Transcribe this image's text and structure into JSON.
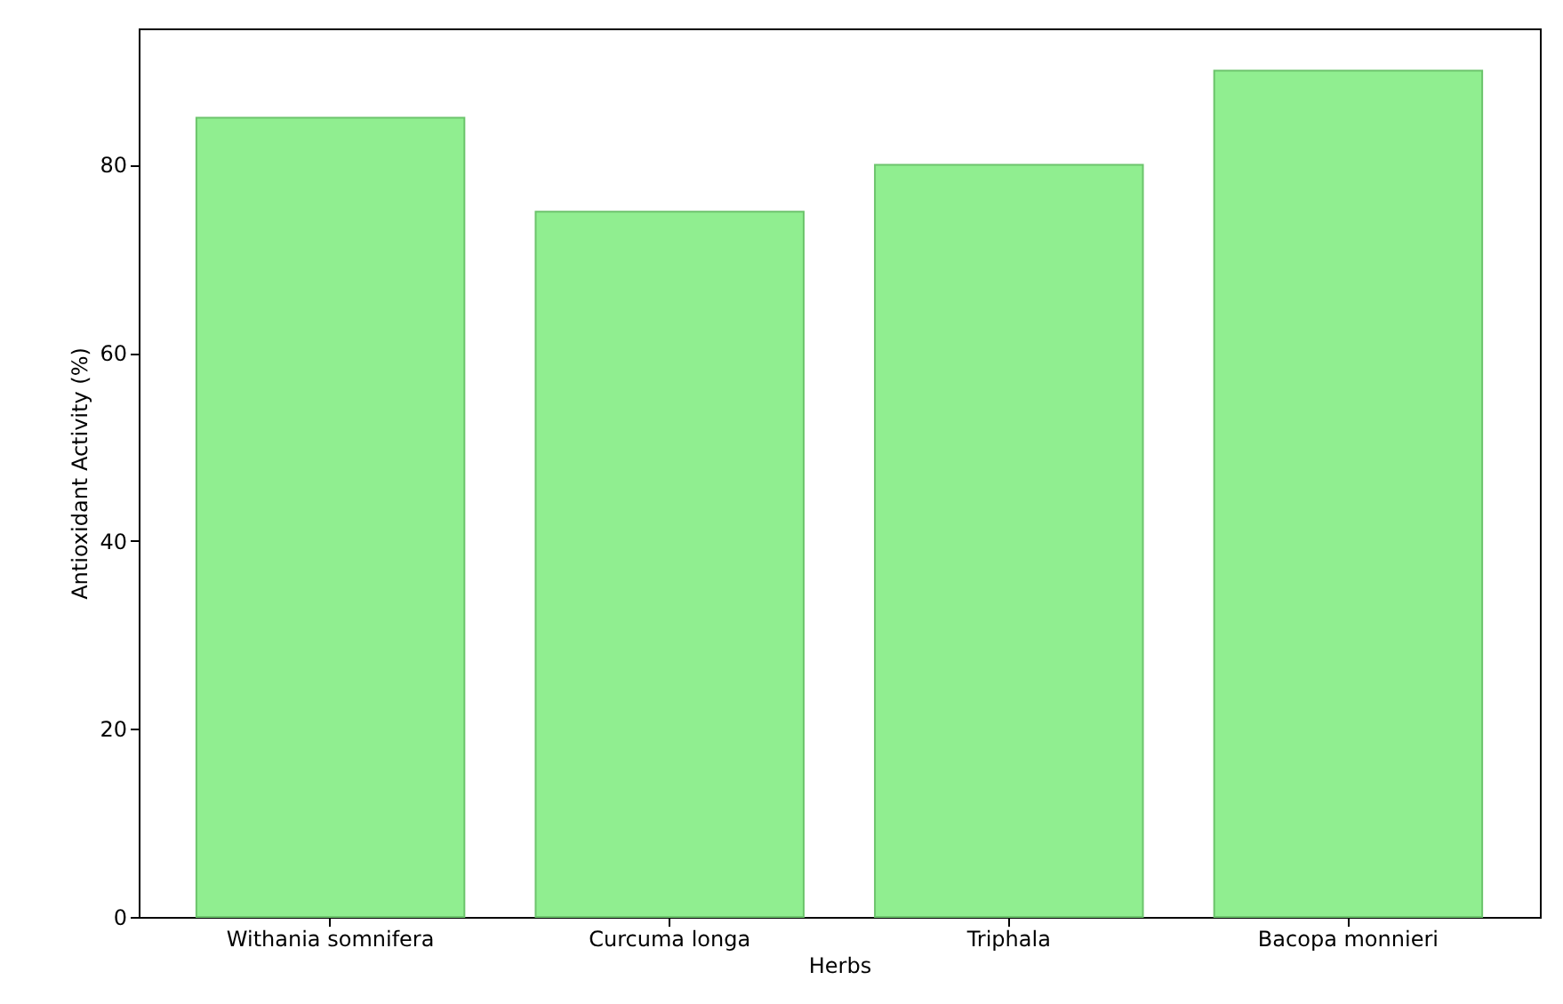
{
  "chart_data": {
    "type": "bar",
    "xlabel": "Herbs",
    "ylabel": "Antioxidant Activity (%)",
    "categories": [
      "Withania somnifera",
      "Curcuma longa",
      "Triphala",
      "Bacopa monnieri"
    ],
    "values": [
      85,
      75,
      80,
      90
    ],
    "color": "#90ee90",
    "ylim": [
      0,
      94.5
    ],
    "yticks": [
      0,
      20,
      40,
      60,
      80
    ],
    "grid": false
  }
}
